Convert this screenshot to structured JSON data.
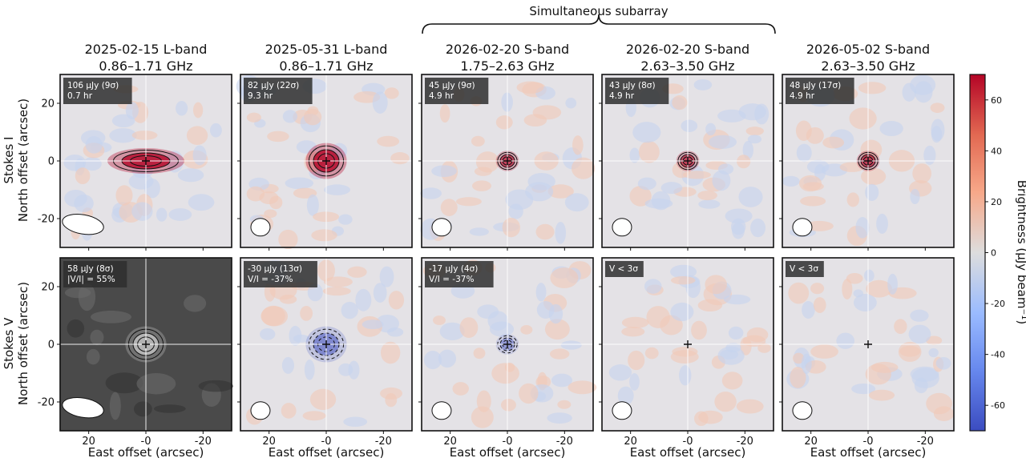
{
  "chart_data": {
    "type": "heatmap",
    "layout": {
      "rows": 2,
      "columns": 5
    },
    "group_label": "Simultaneous subarray",
    "row_labels": [
      [
        "Stokes I",
        "North offset (arcsec)"
      ],
      [
        "Stokes V",
        "North offset (arcsec)"
      ]
    ],
    "xlabel": "East offset (arcsec)",
    "x_range": [
      30,
      -30
    ],
    "y_range": [
      -30,
      30
    ],
    "x_ticks": [
      "20",
      "-0",
      "-20"
    ],
    "y_ticks": [
      "20",
      "0",
      "-20"
    ],
    "colorbar": {
      "label": "Brightness (μJy beam⁻¹)",
      "range": [
        -70,
        70
      ],
      "ticks": [
        "60",
        "40",
        "20",
        "0",
        "-20",
        "-40",
        "-60"
      ],
      "colormap": "coolwarm",
      "low_color": "#3b4cc0",
      "mid_color": "#dddddd",
      "high_color": "#b40426"
    },
    "columns": [
      {
        "date": "2025-02-15",
        "band": "L-band",
        "freq": "0.86–1.71 GHz"
      },
      {
        "date": "2025-05-31",
        "band": "L-band",
        "freq": "0.86–1.71 GHz"
      },
      {
        "date": "2026-02-20",
        "band": "S-band",
        "freq": "1.75–2.63 GHz"
      },
      {
        "date": "2026-02-20",
        "band": "S-band",
        "freq": "2.63–3.50 GHz"
      },
      {
        "date": "2026-05-02",
        "band": "S-band",
        "freq": "2.63–3.50 GHz"
      }
    ],
    "panels": [
      [
        {
          "flux": "106 μJy (9σ)",
          "note": "0.7 hr",
          "peak": 70
        },
        {
          "flux": "82 μJy (22σ)",
          "note": "9.3 hr",
          "peak": 70
        },
        {
          "flux": "45 μJy (9σ)",
          "note": "4.9 hr",
          "peak": 45
        },
        {
          "flux": "43 μJy (8σ)",
          "note": "4.9 hr",
          "peak": 43
        },
        {
          "flux": "48 μJy (17σ)",
          "note": "4.9 hr",
          "peak": 48
        }
      ],
      [
        {
          "flux": "58 μJy (8σ)",
          "note": "|V/I| = 55%",
          "peak": 58,
          "colormap": "gray"
        },
        {
          "flux": "-30 μJy (13σ)",
          "note": "V/I = -37%",
          "peak": -30
        },
        {
          "flux": "-17 μJy (4σ)",
          "note": "V/I = -37%",
          "peak": -17
        },
        {
          "flux": "V < 3σ",
          "note": ""
        },
        {
          "flux": "V < 3σ",
          "note": ""
        }
      ]
    ]
  }
}
